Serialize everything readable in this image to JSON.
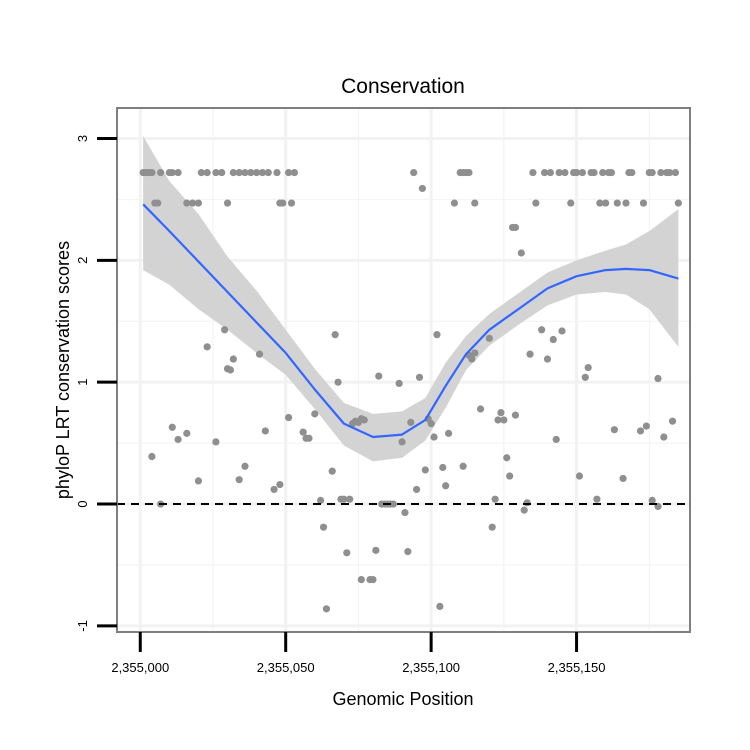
{
  "chart_data": {
    "type": "scatter",
    "title": "Conservation",
    "xlabel": "Genomic Position",
    "ylabel": "phyloP LRT conservation scores",
    "xlim": [
      2354992,
      2355189
    ],
    "ylim": [
      -1.05,
      3.25
    ],
    "x_ticks": [
      2355000,
      2355050,
      2355100,
      2355150
    ],
    "x_tick_labels": [
      "2,355,000",
      "2,355,050",
      "2,355,100",
      "2,355,150"
    ],
    "y_ticks": [
      -1,
      0,
      1,
      2,
      3
    ],
    "y_tick_labels": [
      "-1",
      "0",
      "1",
      "2",
      "3"
    ],
    "reference_line": {
      "y": 0,
      "style": "dashed"
    },
    "colors": {
      "points": "#8f8f8f",
      "smooth": "#3366ff",
      "ribbon": "#d3d3d3",
      "panel_border": "#7f7f7f",
      "grid": "#f2f2f2"
    },
    "points": [
      [
        2355001,
        2.72
      ],
      [
        2355002,
        2.72
      ],
      [
        2355003,
        2.72
      ],
      [
        2355004,
        2.72
      ],
      [
        2355005,
        2.47
      ],
      [
        2355006,
        2.47
      ],
      [
        2355007,
        2.72
      ],
      [
        2355010,
        2.72
      ],
      [
        2355011,
        2.72
      ],
      [
        2355013,
        2.72
      ],
      [
        2355016,
        2.47
      ],
      [
        2355018,
        2.47
      ],
      [
        2355020,
        2.47
      ],
      [
        2355021,
        2.72
      ],
      [
        2355023,
        2.72
      ],
      [
        2355026,
        2.72
      ],
      [
        2355028,
        2.72
      ],
      [
        2355030,
        2.47
      ],
      [
        2355032,
        2.72
      ],
      [
        2355034,
        2.72
      ],
      [
        2355036,
        2.72
      ],
      [
        2355038,
        2.72
      ],
      [
        2355040,
        2.72
      ],
      [
        2355042,
        2.72
      ],
      [
        2355044,
        2.72
      ],
      [
        2355047,
        2.72
      ],
      [
        2355048,
        2.47
      ],
      [
        2355049,
        2.47
      ],
      [
        2355051,
        2.72
      ],
      [
        2355052,
        2.47
      ],
      [
        2355053,
        2.72
      ],
      [
        2355004,
        0.39
      ],
      [
        2355007,
        0
      ],
      [
        2355011,
        0.63
      ],
      [
        2355013,
        0.53
      ],
      [
        2355016,
        0.58
      ],
      [
        2355020,
        0.19
      ],
      [
        2355023,
        1.29
      ],
      [
        2355026,
        0.51
      ],
      [
        2355029,
        1.43
      ],
      [
        2355030,
        1.11
      ],
      [
        2355031,
        1.1
      ],
      [
        2355032,
        1.19
      ],
      [
        2355034,
        0.2
      ],
      [
        2355036,
        0.31
      ],
      [
        2355041,
        1.23
      ],
      [
        2355043,
        0.6
      ],
      [
        2355046,
        0.12
      ],
      [
        2355048,
        0.16
      ],
      [
        2355051,
        0.71
      ],
      [
        2355056,
        0.59
      ],
      [
        2355057,
        0.54
      ],
      [
        2355058,
        0.54
      ],
      [
        2355060,
        0.74
      ],
      [
        2355062,
        0.03
      ],
      [
        2355063,
        -0.19
      ],
      [
        2355064,
        -0.86
      ],
      [
        2355066,
        0.27
      ],
      [
        2355067,
        1.39
      ],
      [
        2355068,
        1.0
      ],
      [
        2355069,
        0.04
      ],
      [
        2355070,
        0.04
      ],
      [
        2355071,
        -0.4
      ],
      [
        2355072,
        0.04
      ],
      [
        2355073,
        0.66
      ],
      [
        2355074,
        0.68
      ],
      [
        2355075,
        0.67
      ],
      [
        2355076,
        0.7
      ],
      [
        2355076,
        -0.62
      ],
      [
        2355077,
        0.69
      ],
      [
        2355079,
        -0.62
      ],
      [
        2355080,
        -0.62
      ],
      [
        2355081,
        -0.38
      ],
      [
        2355082,
        1.05
      ],
      [
        2355083,
        0
      ],
      [
        2355084,
        0
      ],
      [
        2355085,
        0
      ],
      [
        2355086,
        0
      ],
      [
        2355087,
        0
      ],
      [
        2355089,
        0.99
      ],
      [
        2355090,
        0.51
      ],
      [
        2355091,
        -0.07
      ],
      [
        2355092,
        -0.39
      ],
      [
        2355093,
        0.67
      ],
      [
        2355095,
        0.12
      ],
      [
        2355096,
        1.04
      ],
      [
        2355097,
        2.59
      ],
      [
        2355098,
        0.28
      ],
      [
        2355099,
        0.7
      ],
      [
        2355100,
        0.66
      ],
      [
        2355101,
        0.55
      ],
      [
        2355102,
        1.39
      ],
      [
        2355103,
        -0.84
      ],
      [
        2355104,
        0.3
      ],
      [
        2355105,
        0.15
      ],
      [
        2355106,
        0.58
      ],
      [
        2355094,
        2.72
      ],
      [
        2355108,
        2.47
      ],
      [
        2355110,
        2.72
      ],
      [
        2355111,
        2.72
      ],
      [
        2355112,
        2.72
      ],
      [
        2355113,
        2.72
      ],
      [
        2355115,
        2.47
      ],
      [
        2355111,
        0.31
      ],
      [
        2355113,
        1.22
      ],
      [
        2355114,
        1.19
      ],
      [
        2355115,
        1.24
      ],
      [
        2355117,
        0.78
      ],
      [
        2355120,
        1.36
      ],
      [
        2355121,
        -0.19
      ],
      [
        2355122,
        0.04
      ],
      [
        2355123,
        0.69
      ],
      [
        2355124,
        0.75
      ],
      [
        2355125,
        0.69
      ],
      [
        2355126,
        0.38
      ],
      [
        2355127,
        0.23
      ],
      [
        2355128,
        2.27
      ],
      [
        2355129,
        2.27
      ],
      [
        2355129,
        0.73
      ],
      [
        2355131,
        2.06
      ],
      [
        2355132,
        -0.05
      ],
      [
        2355133,
        0.01
      ],
      [
        2355134,
        1.23
      ],
      [
        2355135,
        2.72
      ],
      [
        2355136,
        2.47
      ],
      [
        2355138,
        1.43
      ],
      [
        2355139,
        2.72
      ],
      [
        2355140,
        1.19
      ],
      [
        2355141,
        2.72
      ],
      [
        2355142,
        1.35
      ],
      [
        2355143,
        0.53
      ],
      [
        2355144,
        2.72
      ],
      [
        2355145,
        1.42
      ],
      [
        2355146,
        2.72
      ],
      [
        2355148,
        2.47
      ],
      [
        2355149,
        2.72
      ],
      [
        2355150,
        2.72
      ],
      [
        2355151,
        0.23
      ],
      [
        2355152,
        2.72
      ],
      [
        2355153,
        1.04
      ],
      [
        2355154,
        1.12
      ],
      [
        2355155,
        2.72
      ],
      [
        2355156,
        2.72
      ],
      [
        2355157,
        0.04
      ],
      [
        2355158,
        2.47
      ],
      [
        2355159,
        2.72
      ],
      [
        2355160,
        2.47
      ],
      [
        2355161,
        2.72
      ],
      [
        2355162,
        2.72
      ],
      [
        2355163,
        0.61
      ],
      [
        2355164,
        2.47
      ],
      [
        2355166,
        0.21
      ],
      [
        2355167,
        2.47
      ],
      [
        2355168,
        2.72
      ],
      [
        2355169,
        2.72
      ],
      [
        2355172,
        0.6
      ],
      [
        2355173,
        2.47
      ],
      [
        2355174,
        0.64
      ],
      [
        2355175,
        2.72
      ],
      [
        2355176,
        2.72
      ],
      [
        2355176,
        0.03
      ],
      [
        2355178,
        1.03
      ],
      [
        2355178,
        -0.02
      ],
      [
        2355179,
        2.72
      ],
      [
        2355180,
        0.55
      ],
      [
        2355181,
        2.72
      ],
      [
        2355182,
        2.72
      ],
      [
        2355183,
        0.68
      ],
      [
        2355184,
        2.72
      ],
      [
        2355185,
        2.47
      ]
    ],
    "smooth": {
      "method": "loess",
      "x": [
        2355001,
        2355010,
        2355020,
        2355030,
        2355040,
        2355050,
        2355060,
        2355070,
        2355080,
        2355090,
        2355098,
        2355105,
        2355112,
        2355120,
        2355130,
        2355140,
        2355150,
        2355160,
        2355167,
        2355175,
        2355185
      ],
      "y": [
        2.46,
        2.24,
        1.99,
        1.74,
        1.49,
        1.24,
        0.94,
        0.66,
        0.55,
        0.57,
        0.69,
        0.97,
        1.23,
        1.43,
        1.6,
        1.77,
        1.87,
        1.92,
        1.93,
        1.92,
        1.85
      ],
      "lower": [
        1.92,
        1.8,
        1.6,
        1.43,
        1.24,
        1.06,
        0.78,
        0.48,
        0.35,
        0.38,
        0.52,
        0.79,
        1.1,
        1.3,
        1.47,
        1.63,
        1.72,
        1.74,
        1.72,
        1.6,
        1.29
      ],
      "upper": [
        3.02,
        2.65,
        2.38,
        2.03,
        1.75,
        1.43,
        1.11,
        0.83,
        0.74,
        0.76,
        0.87,
        1.16,
        1.38,
        1.56,
        1.73,
        1.9,
        2.0,
        2.08,
        2.13,
        2.24,
        2.42
      ]
    }
  }
}
